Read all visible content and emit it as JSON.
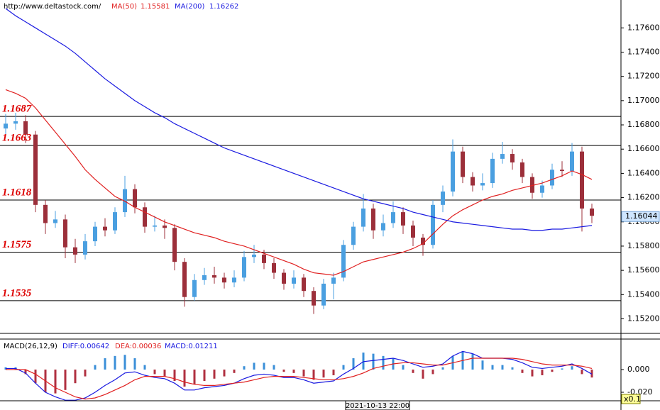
{
  "header": {
    "url": "http://www.deltastock.com/"
  },
  "chart_data": [
    {
      "type": "candlestick",
      "up_color": "#4a9fe0",
      "down_color": "#9c2f3a",
      "open": [
        1.1677,
        1.1681,
        1.1683,
        1.1672,
        1.1614,
        1.1599,
        1.1602,
        1.1579,
        1.1573,
        1.1584,
        1.1596,
        1.1593,
        1.1608,
        1.1627,
        1.1612,
        1.1596,
        1.1597,
        1.1595,
        1.1567,
        1.1538,
        1.1552,
        1.1556,
        1.1554,
        1.155,
        1.1554,
        1.1571,
        1.1573,
        1.1566,
        1.1558,
        1.1549,
        1.1554,
        1.1543,
        1.1531,
        1.1549,
        1.1554,
        1.1581,
        1.1596,
        1.1611,
        1.1593,
        1.1599,
        1.1608,
        1.1597,
        1.1587,
        1.1581,
        1.1614,
        1.1625,
        1.1658,
        1.1637,
        1.163,
        1.1632,
        1.1652,
        1.1656,
        1.1649,
        1.1637,
        1.1624,
        1.163,
        1.1643,
        1.1642,
        1.1658,
        1.1611
      ],
      "high": [
        1.1689,
        1.169,
        1.1688,
        1.1675,
        1.1618,
        1.1609,
        1.1606,
        1.1586,
        1.159,
        1.16,
        1.1603,
        1.1612,
        1.1638,
        1.1631,
        1.1616,
        1.1605,
        1.1602,
        1.1598,
        1.157,
        1.1557,
        1.1562,
        1.1563,
        1.1558,
        1.156,
        1.1576,
        1.1581,
        1.1577,
        1.157,
        1.1561,
        1.156,
        1.1557,
        1.1546,
        1.1553,
        1.1558,
        1.1585,
        1.16,
        1.1623,
        1.1615,
        1.1606,
        1.1617,
        1.1612,
        1.1601,
        1.159,
        1.1618,
        1.163,
        1.1668,
        1.1662,
        1.1641,
        1.164,
        1.1657,
        1.1666,
        1.166,
        1.1652,
        1.164,
        1.1634,
        1.1648,
        1.165,
        1.1665,
        1.1662,
        1.1615
      ],
      "low": [
        1.1672,
        1.1676,
        1.1665,
        1.1608,
        1.159,
        1.1595,
        1.157,
        1.1566,
        1.1569,
        1.158,
        1.1588,
        1.159,
        1.1604,
        1.1607,
        1.1591,
        1.1592,
        1.1586,
        1.156,
        1.153,
        1.1535,
        1.1548,
        1.1549,
        1.1545,
        1.1546,
        1.1551,
        1.1566,
        1.1561,
        1.1553,
        1.1544,
        1.1545,
        1.1538,
        1.1524,
        1.1528,
        1.1536,
        1.1551,
        1.1577,
        1.1592,
        1.1586,
        1.1588,
        1.1595,
        1.159,
        1.158,
        1.1572,
        1.1578,
        1.1608,
        1.1621,
        1.1632,
        1.1625,
        1.1626,
        1.1628,
        1.1648,
        1.1643,
        1.1632,
        1.1619,
        1.162,
        1.1627,
        1.1637,
        1.1638,
        1.1592,
        1.1599
      ],
      "close": [
        1.1681,
        1.1683,
        1.1672,
        1.1614,
        1.1599,
        1.1602,
        1.1579,
        1.1573,
        1.1584,
        1.1596,
        1.1593,
        1.1608,
        1.1627,
        1.1612,
        1.1596,
        1.1597,
        1.1595,
        1.1567,
        1.1538,
        1.1552,
        1.1556,
        1.1554,
        1.155,
        1.1554,
        1.1571,
        1.1573,
        1.1566,
        1.1558,
        1.1549,
        1.1554,
        1.1543,
        1.1531,
        1.1549,
        1.1554,
        1.1581,
        1.1596,
        1.1611,
        1.1593,
        1.1599,
        1.1608,
        1.1597,
        1.1587,
        1.1581,
        1.1614,
        1.1625,
        1.1658,
        1.1637,
        1.163,
        1.1632,
        1.1652,
        1.1656,
        1.1649,
        1.1637,
        1.1624,
        1.163,
        1.1643,
        1.1642,
        1.1658,
        1.1611,
        1.1605
      ],
      "series": [
        {
          "name": "MA(50)",
          "legend_value": "1.15581",
          "color": "#e02020",
          "values": [
            1.1709,
            1.1706,
            1.1702,
            1.1694,
            1.1684,
            1.1674,
            1.1664,
            1.1654,
            1.1643,
            1.1635,
            1.1628,
            1.1621,
            1.1617,
            1.1612,
            1.1608,
            1.1604,
            1.16,
            1.1597,
            1.1594,
            1.1591,
            1.1589,
            1.1587,
            1.1584,
            1.1582,
            1.158,
            1.1577,
            1.1574,
            1.1571,
            1.1568,
            1.1565,
            1.1561,
            1.1558,
            1.1557,
            1.1556,
            1.1559,
            1.1563,
            1.1567,
            1.1569,
            1.1571,
            1.1573,
            1.1575,
            1.1578,
            1.1582,
            1.159,
            1.1598,
            1.1605,
            1.161,
            1.1614,
            1.1618,
            1.1621,
            1.1623,
            1.1626,
            1.1628,
            1.163,
            1.1632,
            1.1635,
            1.1638,
            1.1642,
            1.1639,
            1.1635
          ]
        },
        {
          "name": "MA(200)",
          "legend_value": "1.16262",
          "color": "#1a1ae0",
          "values": [
            1.1776,
            1.177,
            1.1765,
            1.176,
            1.1755,
            1.175,
            1.1745,
            1.1739,
            1.1732,
            1.1725,
            1.1718,
            1.1712,
            1.1706,
            1.17,
            1.1695,
            1.169,
            1.1686,
            1.1681,
            1.1677,
            1.1673,
            1.1669,
            1.1665,
            1.1661,
            1.1658,
            1.1655,
            1.1652,
            1.1649,
            1.1646,
            1.1643,
            1.164,
            1.1637,
            1.1634,
            1.1631,
            1.1628,
            1.1625,
            1.1622,
            1.1619,
            1.1617,
            1.1615,
            1.1613,
            1.1611,
            1.1608,
            1.1606,
            1.1604,
            1.1602,
            1.16,
            1.1599,
            1.1598,
            1.1597,
            1.1596,
            1.1595,
            1.1594,
            1.1594,
            1.1593,
            1.1593,
            1.1594,
            1.1594,
            1.1595,
            1.1596,
            1.1597
          ]
        }
      ],
      "ylim": [
        1.1508,
        1.1783
      ],
      "yticks": [
        {
          "value": 1.152,
          "label": "1.15200"
        },
        {
          "value": 1.154,
          "label": "1.15400"
        },
        {
          "value": 1.156,
          "label": "1.15600"
        },
        {
          "value": 1.158,
          "label": "1.15800"
        },
        {
          "value": 1.16,
          "label": "1.16000"
        },
        {
          "value": 1.162,
          "label": "1.16200"
        },
        {
          "value": 1.164,
          "label": "1.16400"
        },
        {
          "value": 1.166,
          "label": "1.16600"
        },
        {
          "value": 1.168,
          "label": "1.16800"
        },
        {
          "value": 1.17,
          "label": "1.17000"
        },
        {
          "value": 1.172,
          "label": "1.17200"
        },
        {
          "value": 1.174,
          "label": "1.17400"
        },
        {
          "value": 1.176,
          "label": "1.17600"
        }
      ],
      "levels": [
        1.1687,
        1.1663,
        1.1618,
        1.1575,
        1.1535
      ],
      "level_color": "#dd0000",
      "last_price": {
        "value": 1.16044,
        "label": "1.16044"
      }
    },
    {
      "type": "macd",
      "title": "MACD(26,12,9)",
      "series": [
        {
          "name": "MACD:0.01211",
          "type": "bar",
          "up_color": "#3a8fd8",
          "down_color": "#b03040",
          "values": [
            0.002,
            0.002,
            -0.004,
            -0.012,
            -0.02,
            -0.021,
            -0.018,
            -0.012,
            -0.006,
            0.004,
            0.01,
            0.012,
            0.013,
            0.01,
            0.004,
            -0.004,
            -0.006,
            -0.01,
            -0.015,
            -0.013,
            -0.01,
            -0.008,
            -0.006,
            -0.003,
            0.003,
            0.006,
            0.006,
            0.004,
            -0.002,
            -0.003,
            -0.006,
            -0.009,
            -0.007,
            -0.005,
            0.004,
            0.01,
            0.015,
            0.014,
            0.012,
            0.01,
            0.004,
            -0.003,
            -0.008,
            -0.004,
            0.002,
            0.012,
            0.016,
            0.014,
            0.008,
            0.004,
            0.004,
            0.002,
            -0.003,
            -0.006,
            -0.005,
            -0.002,
            0.001,
            0.003,
            -0.004,
            -0.007
          ]
        },
        {
          "name": "DIFF:0.00642",
          "type": "line",
          "color": "#1a1ae0",
          "values": [
            0.001,
            0.001,
            -0.003,
            -0.012,
            -0.02,
            -0.024,
            -0.027,
            -0.027,
            -0.025,
            -0.02,
            -0.014,
            -0.009,
            -0.003,
            -0.002,
            -0.005,
            -0.007,
            -0.008,
            -0.012,
            -0.018,
            -0.018,
            -0.016,
            -0.015,
            -0.014,
            -0.012,
            -0.008,
            -0.005,
            -0.004,
            -0.005,
            -0.007,
            -0.007,
            -0.009,
            -0.012,
            -0.011,
            -0.01,
            -0.004,
            0.001,
            0.007,
            0.008,
            0.009,
            0.01,
            0.008,
            0.005,
            0.002,
            0.003,
            0.005,
            0.012,
            0.016,
            0.014,
            0.01,
            0.01,
            0.01,
            0.009,
            0.006,
            0.002,
            0.001,
            0.002,
            0.003,
            0.005,
            0.001,
            -0.004
          ]
        },
        {
          "name": "DEA:0.00036",
          "type": "line",
          "color": "#e02020",
          "values": [
            0.0,
            0.0,
            0.0,
            -0.004,
            -0.01,
            -0.016,
            -0.02,
            -0.024,
            -0.026,
            -0.025,
            -0.022,
            -0.018,
            -0.014,
            -0.009,
            -0.006,
            -0.006,
            -0.006,
            -0.008,
            -0.011,
            -0.013,
            -0.014,
            -0.014,
            -0.013,
            -0.012,
            -0.011,
            -0.009,
            -0.007,
            -0.006,
            -0.006,
            -0.006,
            -0.007,
            -0.008,
            -0.009,
            -0.009,
            -0.008,
            -0.006,
            -0.003,
            0.001,
            0.003,
            0.005,
            0.006,
            0.006,
            0.005,
            0.004,
            0.004,
            0.006,
            0.008,
            0.01,
            0.01,
            0.01,
            0.01,
            0.01,
            0.009,
            0.007,
            0.005,
            0.004,
            0.004,
            0.004,
            0.003,
            0.001
          ]
        }
      ],
      "ylim": [
        -0.0275,
        0.0269
      ],
      "yticks": [
        {
          "value": 0,
          "label": "0.000"
        },
        {
          "value": -0.02,
          "label": "-0.020"
        }
      ],
      "time_label": "2021-10-13 22:00",
      "scale_label": "x0.1"
    }
  ]
}
